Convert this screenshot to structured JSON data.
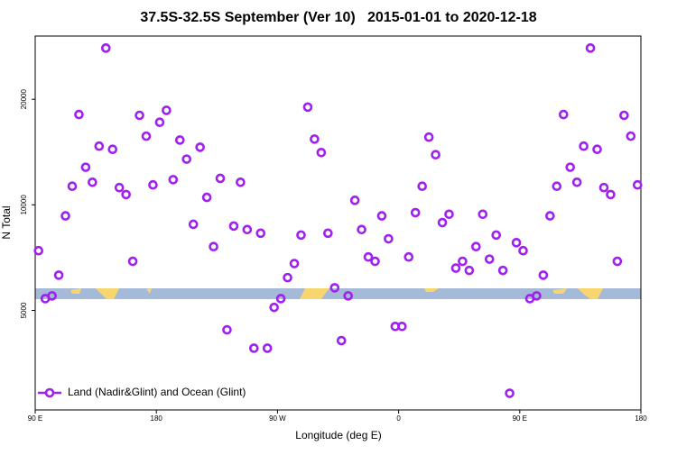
{
  "chart_data": {
    "type": "scatter",
    "title": "37.5S-32.5S September (Ver 10)   2015-01-01 to 2020-12-18",
    "x_label": "Longitude (deg E)",
    "y_label": "N Total",
    "xlim": [
      90,
      540
    ],
    "xticks": [
      {
        "value": 90,
        "label": "90 E"
      },
      180,
      {
        "value": 270,
        "label": "90 W"
      },
      {
        "value": 360,
        "label": "0"
      },
      {
        "value": 450,
        "label": "90 E"
      },
      180
    ],
    "ylim": [
      2600,
      30300
    ],
    "ylog": true,
    "yticks": [
      5000,
      10000,
      20000
    ],
    "legend": "bottom-left",
    "series": [
      {
        "name": "Land (Nadir&Glint) and Ocean (Glint)",
        "color": "#a020f0",
        "x": [
          92.5,
          97.5,
          102.5,
          107.5,
          112.5,
          117.5,
          122.5,
          127.5,
          132.5,
          137.5,
          142.5,
          147.5,
          152.5,
          157.5,
          162.5,
          167.5,
          172.5,
          177.5,
          182.5,
          187.5,
          192.5,
          197.5,
          202.5,
          207.5,
          212.5,
          217.5,
          222.5,
          227.5,
          232.5,
          237.5,
          242.5,
          247.5,
          252.5,
          257.5,
          262.5,
          267.5,
          272.5,
          277.5,
          282.5,
          287.5,
          292.5,
          297.5,
          302.5,
          307.5,
          312.5,
          317.5,
          322.5,
          327.5,
          332.5,
          337.5,
          342.5,
          347.5,
          352.5,
          357.5,
          362.5,
          367.5,
          372.5,
          377.5,
          382.5,
          387.5,
          392.5,
          397.5,
          402.5,
          407.5,
          412.5,
          417.5,
          422.5,
          427.5,
          432.5,
          437.5,
          442.5,
          447.5,
          452.5,
          457.5,
          462.5,
          467.5,
          472.5,
          477.5,
          482.5,
          487.5,
          492.5,
          497.5,
          502.5,
          507.5,
          512.5,
          517.5,
          522.5,
          527.5,
          532.5,
          537.5
        ],
        "values": [
          7400,
          5400,
          5500,
          6300,
          9300,
          11300,
          18100,
          12800,
          11600,
          14700,
          28000,
          14400,
          11200,
          10700,
          6900,
          18000,
          15700,
          11400,
          17200,
          18600,
          11800,
          15300,
          13500,
          8800,
          14600,
          10500,
          7600,
          11900,
          4400,
          8700,
          11600,
          8500,
          3900,
          8300,
          3900,
          5100,
          5400,
          6200,
          6800,
          8200,
          19000,
          15400,
          14100,
          8300,
          5800,
          4100,
          5500,
          10300,
          8500,
          7100,
          6900,
          9300,
          8000,
          4500,
          4500,
          7100,
          9500,
          11300,
          15600,
          13900,
          8900,
          9400,
          6600,
          6900,
          6500,
          7600,
          9400,
          7000,
          8200,
          6500,
          2900,
          7800,
          7400,
          5400,
          5500,
          6300,
          9300,
          11300,
          18100,
          12800,
          11600,
          14700,
          28000,
          14400,
          11200,
          10700,
          6900,
          18000,
          15700,
          11400
        ]
      }
    ]
  }
}
